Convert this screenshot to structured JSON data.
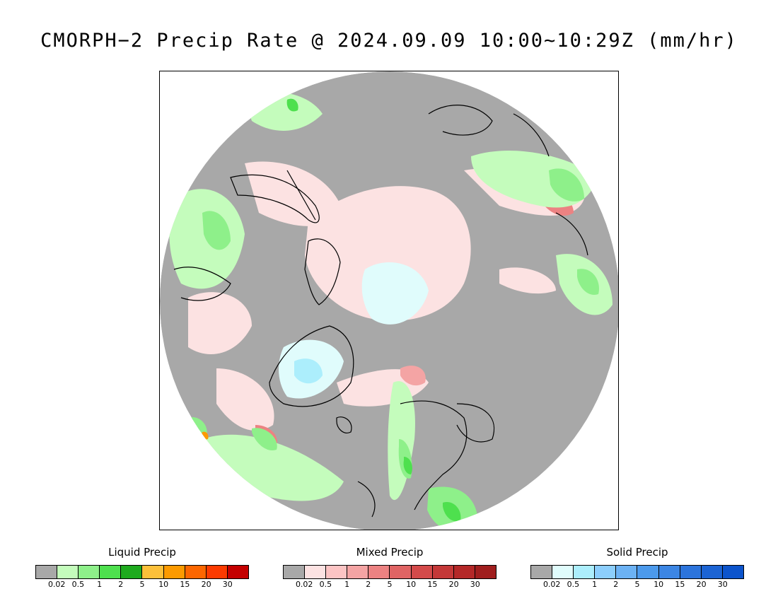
{
  "title": "CMORPH−2 Precip Rate @ 2024.09.09 10:00~10:29Z (mm/hr)",
  "map": {
    "projection": "polar-stereographic-north",
    "background_color": "#a8a8a8",
    "coastline_color": "#000000"
  },
  "legends": [
    {
      "id": "liquid",
      "title": "Liquid Precip",
      "colors": [
        "#a8a8a8",
        "#c4fcbc",
        "#8ef08a",
        "#4ee04e",
        "#1eaa1e",
        "#fcc03a",
        "#fc9a00",
        "#fc6600",
        "#fc3a00",
        "#c40000"
      ],
      "tick_labels": [
        "0.02",
        "0.5",
        "1",
        "2",
        "5",
        "10",
        "15",
        "20",
        "30"
      ]
    },
    {
      "id": "mixed",
      "title": "Mixed Precip",
      "colors": [
        "#a8a8a8",
        "#fce2e2",
        "#fcc4c4",
        "#f4a4a4",
        "#ec8282",
        "#e06464",
        "#d44a4a",
        "#c43838",
        "#b42828",
        "#a01e1e"
      ],
      "tick_labels": [
        "0.02",
        "0.5",
        "1",
        "2",
        "5",
        "10",
        "15",
        "20",
        "30"
      ]
    },
    {
      "id": "solid",
      "title": "Solid Precip",
      "colors": [
        "#a8a8a8",
        "#e0fcfc",
        "#aceefc",
        "#8ccefc",
        "#6cb2f4",
        "#4c9aec",
        "#3c86e4",
        "#2c74dc",
        "#1c64d4",
        "#0c54cc"
      ],
      "tick_labels": [
        "0.02",
        "0.5",
        "1",
        "2",
        "5",
        "10",
        "15",
        "20",
        "30"
      ]
    }
  ]
}
